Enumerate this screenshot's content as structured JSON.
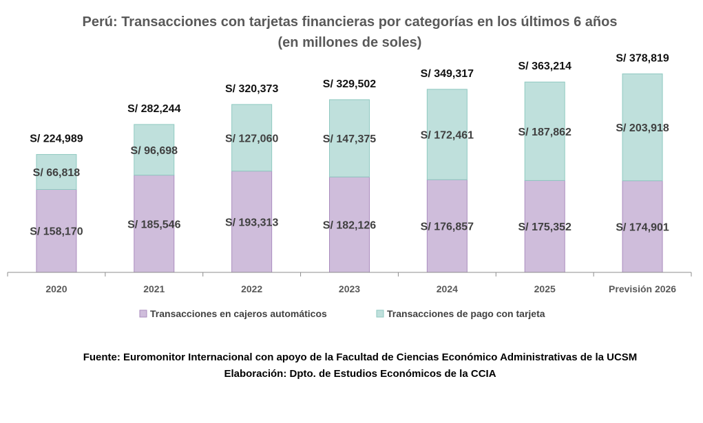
{
  "chart_data": {
    "type": "bar",
    "stacked": true,
    "title": "Perú: Transacciones con tarjetas financieras por categorías en los últimos 6 años",
    "subtitle": "(en millones de soles)",
    "categories": [
      "2020",
      "2021",
      "2022",
      "2023",
      "2024",
      "2025",
      "Previsión 2026"
    ],
    "series": [
      {
        "name": "Transacciones en cajeros automáticos",
        "color": "#cfbddb",
        "values": [
          158170,
          185546,
          193313,
          182126,
          176857,
          175352,
          174901
        ],
        "labels": [
          "S/ 158,170",
          "S/ 185,546",
          "S/ 193,313",
          "S/ 182,126",
          "S/ 176,857",
          "S/ 175,352",
          "S/ 174,901"
        ]
      },
      {
        "name": "Transacciones de pago con tarjeta",
        "color": "#bfe0dc",
        "values": [
          66818,
          96698,
          127060,
          147375,
          172461,
          187862,
          203918
        ],
        "labels": [
          "S/ 66,818",
          "S/ 96,698",
          "S/ 127,060",
          "S/ 147,375",
          "S/ 172,461",
          "S/ 187,862",
          "S/ 203,918"
        ]
      }
    ],
    "totals": [
      224989,
      282244,
      320373,
      329502,
      349317,
      363214,
      378819
    ],
    "total_labels": [
      "S/ 224,989",
      "S/ 282,244",
      "S/ 320,373",
      "S/ 329,502",
      "S/ 349,317",
      "S/ 363,214",
      "S/ 378,819"
    ],
    "ylim": [
      0,
      400000
    ],
    "grid": false,
    "legend": "bottom"
  },
  "source": "Fuente: Euromonitor Internacional con apoyo de la Facultad de Ciencias Económico Administrativas de la UCSM",
  "credit": "Elaboración: Dpto. de Estudios Económicos de la CCIA"
}
